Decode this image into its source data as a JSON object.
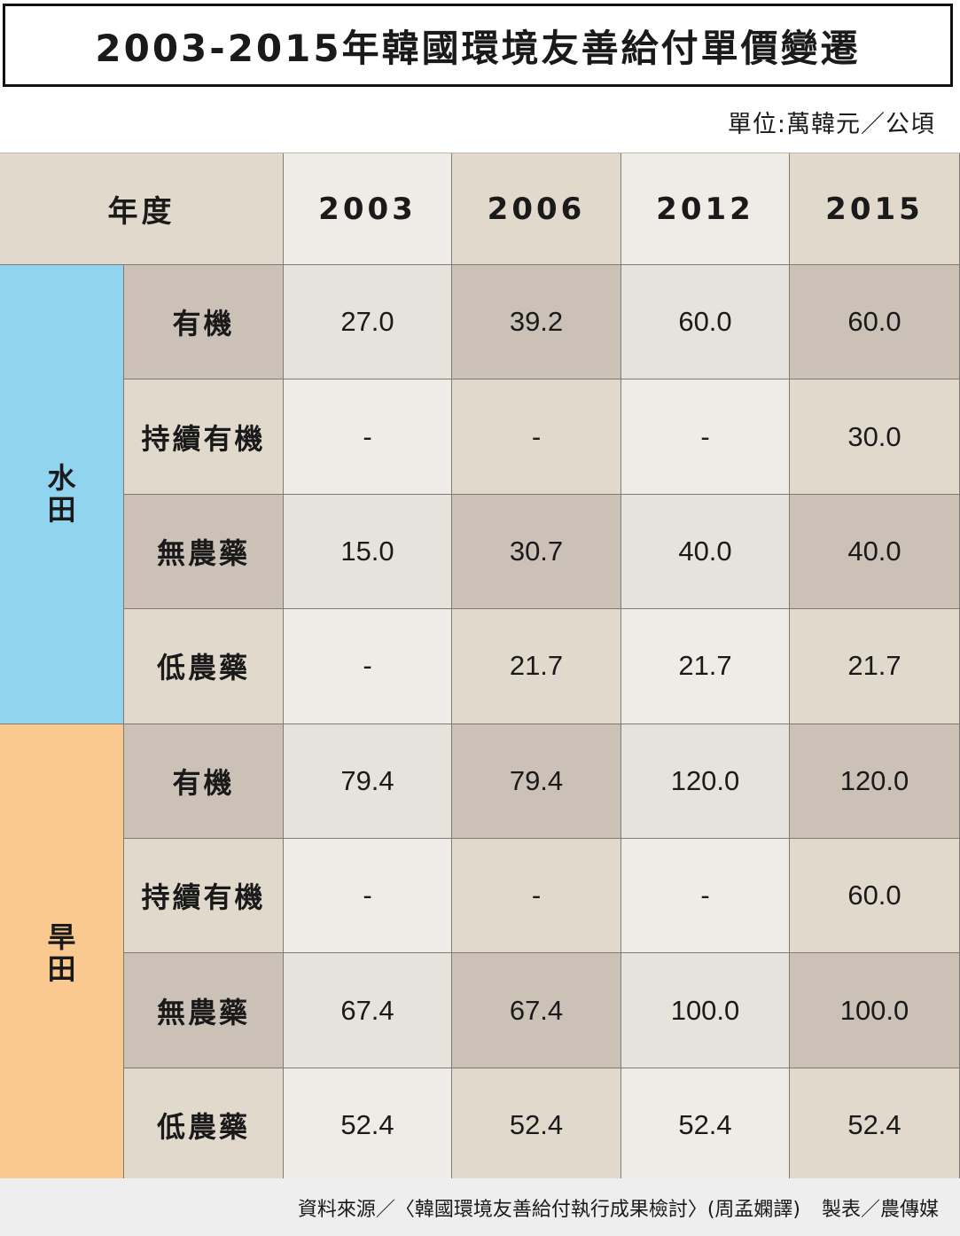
{
  "title": "2003-2015年韓國環境友善給付單價變遷",
  "unit": "單位:萬韓元／公頃",
  "header": {
    "year_label": "年度",
    "years": [
      "2003",
      "2006",
      "2012",
      "2015"
    ]
  },
  "groups": [
    {
      "name": "水田",
      "rows": [
        {
          "label": "有機",
          "values": [
            "27.0",
            "39.2",
            "60.0",
            "60.0"
          ]
        },
        {
          "label": "持續有機",
          "values": [
            "-",
            "-",
            "-",
            "30.0"
          ]
        },
        {
          "label": "無農藥",
          "values": [
            "15.0",
            "30.7",
            "40.0",
            "40.0"
          ]
        },
        {
          "label": "低農藥",
          "values": [
            "-",
            "21.7",
            "21.7",
            "21.7"
          ]
        }
      ]
    },
    {
      "name": "旱田",
      "rows": [
        {
          "label": "有機",
          "values": [
            "79.4",
            "79.4",
            "120.0",
            "120.0"
          ]
        },
        {
          "label": "持續有機",
          "values": [
            "-",
            "-",
            "-",
            "60.0"
          ]
        },
        {
          "label": "無農藥",
          "values": [
            "67.4",
            "67.4",
            "100.0",
            "100.0"
          ]
        },
        {
          "label": "低農藥",
          "values": [
            "52.4",
            "52.4",
            "52.4",
            "52.4"
          ]
        }
      ]
    }
  ],
  "footer": {
    "source": "資料來源／〈韓國環境友善給付執行成果檢討〉(周孟嫻譯)",
    "credit": "製表／農傳媒"
  },
  "colors": {
    "paddy": "#90d4f0",
    "dry": "#f9c990",
    "header": "#e2d9cd"
  }
}
